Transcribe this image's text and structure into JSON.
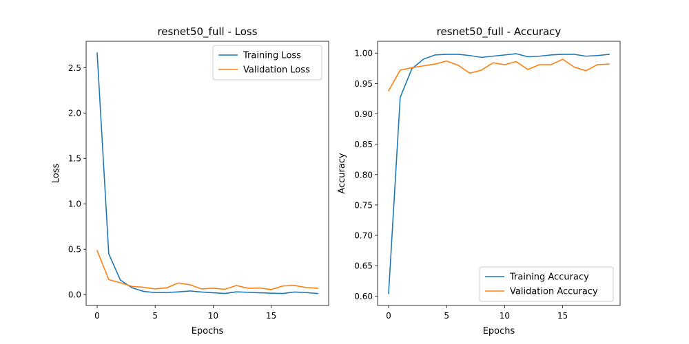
{
  "chart_data": [
    {
      "type": "line",
      "title": "resnet50_full - Loss",
      "xlabel": "Epochs",
      "ylabel": "Loss",
      "xlim": [
        -0.95,
        19.95
      ],
      "ylim": [
        -0.12,
        2.79
      ],
      "xticks": [
        0,
        5,
        10,
        15
      ],
      "yticks": [
        0.0,
        0.5,
        1.0,
        1.5,
        2.0,
        2.5
      ],
      "tick_decimals": 1,
      "legend_position": "upper-right",
      "grid": false,
      "x": [
        0,
        1,
        2,
        3,
        4,
        5,
        6,
        7,
        8,
        9,
        10,
        11,
        12,
        13,
        14,
        15,
        16,
        17,
        18,
        19
      ],
      "series": [
        {
          "name": "Training Loss",
          "color": "#1f77b4",
          "values": [
            2.66,
            0.45,
            0.16,
            0.075,
            0.035,
            0.022,
            0.022,
            0.03,
            0.04,
            0.028,
            0.02,
            0.012,
            0.03,
            0.025,
            0.02,
            0.015,
            0.012,
            0.028,
            0.022,
            0.012
          ]
        },
        {
          "name": "Validation Loss",
          "color": "#ff7f0e",
          "values": [
            0.485,
            0.165,
            0.13,
            0.09,
            0.08,
            0.062,
            0.075,
            0.128,
            0.108,
            0.062,
            0.07,
            0.058,
            0.1,
            0.07,
            0.072,
            0.055,
            0.095,
            0.1,
            0.078,
            0.07
          ]
        }
      ]
    },
    {
      "type": "line",
      "title": "resnet50_full - Accuracy",
      "xlabel": "Epochs",
      "ylabel": "Accuracy",
      "xlim": [
        -0.95,
        19.95
      ],
      "ylim": [
        0.5845,
        1.0195
      ],
      "xticks": [
        0,
        5,
        10,
        15
      ],
      "yticks": [
        0.6,
        0.65,
        0.7,
        0.75,
        0.8,
        0.85,
        0.9,
        0.95,
        1.0
      ],
      "tick_decimals": 2,
      "legend_position": "lower-right",
      "grid": false,
      "x": [
        0,
        1,
        2,
        3,
        4,
        5,
        6,
        7,
        8,
        9,
        10,
        11,
        12,
        13,
        14,
        15,
        16,
        17,
        18,
        19
      ],
      "series": [
        {
          "name": "Training Accuracy",
          "color": "#1f77b4",
          "values": [
            0.604,
            0.927,
            0.974,
            0.99,
            0.997,
            0.998,
            0.998,
            0.996,
            0.993,
            0.995,
            0.997,
            0.999,
            0.994,
            0.995,
            0.997,
            0.998,
            0.998,
            0.995,
            0.996,
            0.998
          ]
        },
        {
          "name": "Validation Accuracy",
          "color": "#ff7f0e",
          "values": [
            0.938,
            0.972,
            0.976,
            0.979,
            0.982,
            0.987,
            0.98,
            0.967,
            0.972,
            0.984,
            0.981,
            0.986,
            0.973,
            0.981,
            0.981,
            0.99,
            0.977,
            0.971,
            0.981,
            0.982
          ]
        }
      ]
    }
  ]
}
